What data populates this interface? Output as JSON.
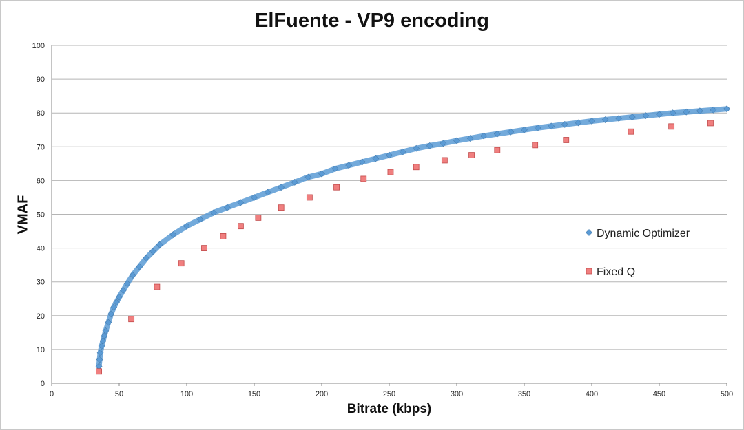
{
  "chart_data": {
    "type": "scatter",
    "title": "ElFuente - VP9 encoding",
    "xlabel": "Bitrate (kbps)",
    "ylabel": "VMAF",
    "xlim": [
      0,
      500
    ],
    "ylim": [
      0,
      100
    ],
    "xticks": [
      0,
      50,
      100,
      150,
      200,
      250,
      300,
      350,
      400,
      450,
      500
    ],
    "yticks": [
      0,
      10,
      20,
      30,
      40,
      50,
      60,
      70,
      80,
      90,
      100
    ],
    "grid": "horizontal",
    "legend_position": "right",
    "series": [
      {
        "name": "Dynamic Optimizer",
        "marker": "diamond",
        "color": "#5b9bd5",
        "x": [
          35,
          35.5,
          36,
          37,
          38,
          39,
          40,
          42,
          44,
          46,
          48,
          50,
          53,
          56,
          60,
          65,
          70,
          75,
          80,
          90,
          100,
          110,
          120,
          130,
          140,
          150,
          160,
          170,
          180,
          190,
          200,
          210,
          220,
          230,
          240,
          250,
          260,
          270,
          280,
          290,
          300,
          310,
          320,
          330,
          340,
          350,
          360,
          370,
          380,
          390,
          400,
          410,
          420,
          430,
          440,
          450,
          460,
          470,
          480,
          490,
          500
        ],
        "y": [
          5,
          7,
          9,
          11,
          12.5,
          14,
          15.5,
          18,
          20.5,
          22.5,
          24,
          25.5,
          27.5,
          29.5,
          32,
          34.5,
          37,
          39,
          41,
          44,
          46.5,
          48.5,
          50.5,
          52,
          53.5,
          55,
          56.5,
          58,
          59.5,
          61,
          62,
          63.5,
          64.5,
          65.5,
          66.5,
          67.5,
          68.5,
          69.5,
          70.3,
          71,
          71.8,
          72.5,
          73.2,
          73.8,
          74.4,
          75,
          75.6,
          76.1,
          76.6,
          77.1,
          77.6,
          78,
          78.4,
          78.8,
          79.2,
          79.6,
          80,
          80.3,
          80.6,
          80.9,
          81.2
        ]
      },
      {
        "name": "Fixed Q",
        "marker": "square",
        "color": "#f07f7f",
        "x": [
          35,
          59,
          78,
          96,
          113,
          127,
          140,
          153,
          170,
          191,
          211,
          231,
          251,
          270,
          291,
          311,
          330,
          358,
          381,
          429,
          459,
          488
        ],
        "y": [
          3.5,
          19,
          28.5,
          35.5,
          40,
          43.5,
          46.5,
          49,
          52,
          55,
          58,
          60.5,
          62.5,
          64,
          66,
          67.5,
          69,
          70.5,
          72,
          74.5,
          76,
          77
        ]
      }
    ]
  }
}
